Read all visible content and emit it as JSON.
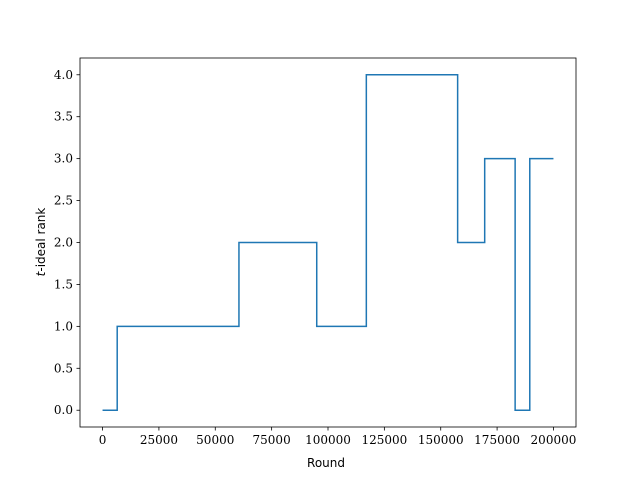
{
  "chart_data": {
    "type": "line",
    "drawstyle": "steps-post",
    "xlabel": "Round",
    "ylabel_italic": "t",
    "ylabel_rest": "-ideal rank",
    "xlim": [
      -10000,
      210000
    ],
    "ylim": [
      -0.2,
      4.2
    ],
    "xticks": [
      0,
      25000,
      50000,
      75000,
      100000,
      125000,
      150000,
      175000,
      200000
    ],
    "xtick_labels": [
      "0",
      "25000",
      "50000",
      "75000",
      "100000",
      "125000",
      "150000",
      "175000",
      "200000"
    ],
    "yticks": [
      0.0,
      0.5,
      1.0,
      1.5,
      2.0,
      2.5,
      3.0,
      3.5,
      4.0
    ],
    "ytick_labels": [
      "0.0",
      "0.5",
      "1.0",
      "1.5",
      "2.0",
      "2.5",
      "3.0",
      "3.5",
      "4.0"
    ],
    "grid": false,
    "line_color": "#1f77b4",
    "series": [
      {
        "x": [
          0,
          6500,
          60500,
          95000,
          117000,
          157500,
          169500,
          183000,
          189500,
          200000
        ],
        "y": [
          0,
          1,
          2,
          1,
          4,
          2,
          3,
          0,
          3,
          3
        ]
      }
    ]
  }
}
